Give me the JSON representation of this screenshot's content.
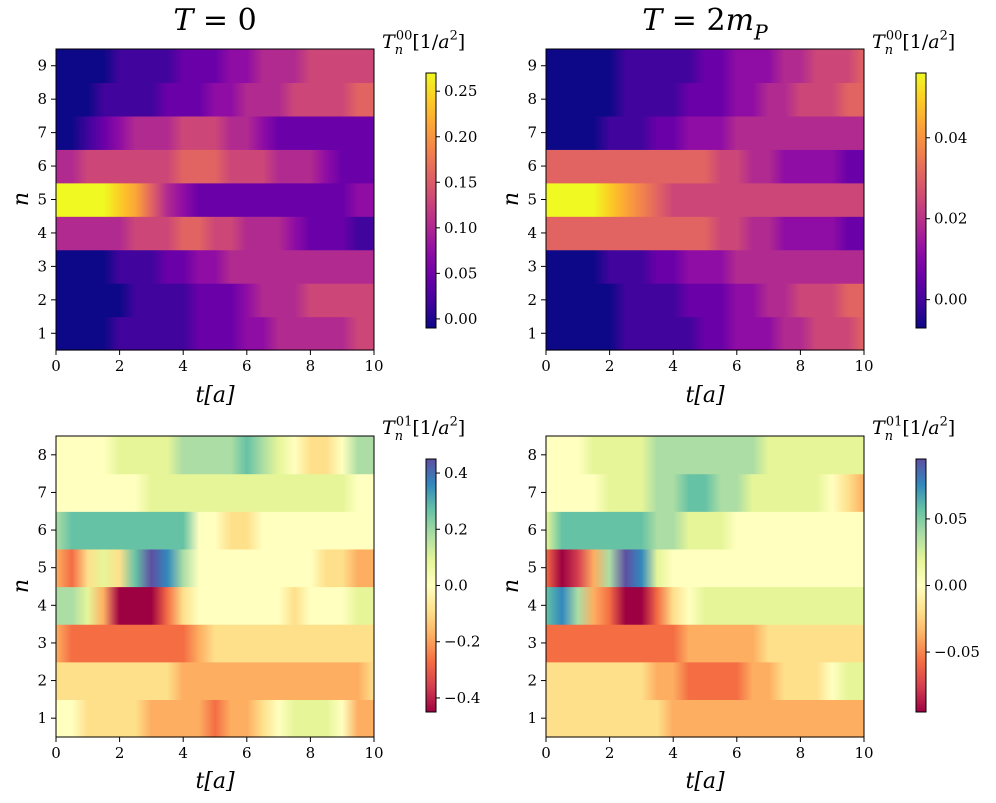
{
  "chart_data": [
    {
      "type": "heatmap",
      "title": "T = 0",
      "quantity": "T_n^{00}[1/a^2]",
      "colormap": "plasma",
      "xlabel": "t[a]",
      "ylabel": "n",
      "xlim": [
        0,
        10
      ],
      "xticks": [
        "0",
        "2",
        "4",
        "6",
        "8",
        "10"
      ],
      "rows": [
        "1",
        "2",
        "3",
        "4",
        "5",
        "6",
        "7",
        "8",
        "9"
      ],
      "t": [
        0,
        0.5,
        1,
        1.5,
        2,
        2.5,
        3,
        3.5,
        4,
        4.5,
        5,
        5.5,
        6,
        6.5,
        7,
        7.5,
        8,
        8.5,
        9,
        9.5,
        10
      ],
      "values": [
        [
          0.0,
          0.0,
          0.0,
          0.0,
          0.005,
          0.01,
          0.015,
          0.02,
          0.03,
          0.04,
          0.05,
          0.06,
          0.07,
          0.08,
          0.09,
          0.1,
          0.1,
          0.11,
          0.11,
          0.12,
          0.12
        ],
        [
          0.0,
          0.0,
          0.0,
          0.0,
          0.0,
          0.005,
          0.01,
          0.02,
          0.03,
          0.04,
          0.05,
          0.06,
          0.07,
          0.09,
          0.1,
          0.11,
          0.12,
          0.13,
          0.14,
          0.14,
          0.14
        ],
        [
          0.0,
          -0.01,
          -0.005,
          0.0,
          0.01,
          0.02,
          0.03,
          0.04,
          0.05,
          0.07,
          0.08,
          0.09,
          0.1,
          0.1,
          0.1,
          0.1,
          0.1,
          0.1,
          0.1,
          0.09,
          0.09
        ],
        [
          0.1,
          0.1,
          0.1,
          0.1,
          0.11,
          0.12,
          0.13,
          0.14,
          0.15,
          0.15,
          0.14,
          0.13,
          0.11,
          0.1,
          0.09,
          0.08,
          0.06,
          0.05,
          0.04,
          0.02,
          0.02
        ],
        [
          0.27,
          0.27,
          0.27,
          0.26,
          0.24,
          0.2,
          0.15,
          0.1,
          0.07,
          0.06,
          0.05,
          0.05,
          0.05,
          0.05,
          0.05,
          0.05,
          0.06,
          0.06,
          0.06,
          0.07,
          0.07
        ],
        [
          0.1,
          0.11,
          0.12,
          0.13,
          0.13,
          0.13,
          0.13,
          0.14,
          0.15,
          0.15,
          0.15,
          0.14,
          0.13,
          0.12,
          0.11,
          0.1,
          0.09,
          0.08,
          0.06,
          0.05,
          0.04
        ],
        [
          -0.01,
          -0.005,
          0.02,
          0.05,
          0.07,
          0.09,
          0.1,
          0.11,
          0.12,
          0.12,
          0.12,
          0.11,
          0.09,
          0.07,
          0.05,
          0.04,
          0.04,
          0.05,
          0.06,
          0.06,
          0.06
        ],
        [
          0.0,
          0.0,
          0.0,
          0.005,
          0.01,
          0.02,
          0.03,
          0.04,
          0.05,
          0.06,
          0.07,
          0.08,
          0.09,
          0.1,
          0.11,
          0.12,
          0.13,
          0.14,
          0.14,
          0.15,
          0.15
        ],
        [
          0.0,
          0.0,
          0.0,
          0.0,
          0.005,
          0.01,
          0.02,
          0.03,
          0.04,
          0.05,
          0.06,
          0.07,
          0.08,
          0.09,
          0.1,
          0.11,
          0.12,
          0.12,
          0.13,
          0.13,
          0.13
        ]
      ],
      "vmin": -0.01,
      "vmax": 0.27,
      "colorbar_ticks": [
        "0.00",
        "0.05",
        "0.10",
        "0.15",
        "0.20",
        "0.25"
      ]
    },
    {
      "type": "heatmap",
      "title": "T = 2m_P",
      "quantity": "T_n^{00}[1/a^2]",
      "colormap": "plasma",
      "xlabel": "t[a]",
      "ylabel": "n",
      "xlim": [
        0,
        10
      ],
      "xticks": [
        "0",
        "2",
        "4",
        "6",
        "8",
        "10"
      ],
      "rows": [
        "1",
        "2",
        "3",
        "4",
        "5",
        "6",
        "7",
        "8",
        "9"
      ],
      "t": [
        0,
        0.5,
        1,
        1.5,
        2,
        2.5,
        3,
        3.5,
        4,
        4.5,
        5,
        5.5,
        6,
        6.5,
        7,
        7.5,
        8,
        8.5,
        9,
        9.5,
        10
      ],
      "values": [
        [
          -0.005,
          -0.005,
          -0.005,
          -0.005,
          -0.004,
          -0.003,
          -0.002,
          -0.001,
          0.0,
          0.002,
          0.004,
          0.006,
          0.009,
          0.012,
          0.015,
          0.018,
          0.021,
          0.024,
          0.026,
          0.027,
          0.028
        ],
        [
          -0.005,
          -0.005,
          -0.005,
          -0.005,
          -0.004,
          -0.003,
          -0.002,
          -0.001,
          0.001,
          0.003,
          0.005,
          0.008,
          0.011,
          0.014,
          0.017,
          0.02,
          0.023,
          0.025,
          0.027,
          0.028,
          0.03
        ],
        [
          -0.005,
          -0.007,
          -0.006,
          -0.004,
          -0.002,
          0.0,
          0.002,
          0.005,
          0.008,
          0.011,
          0.013,
          0.015,
          0.016,
          0.017,
          0.018,
          0.018,
          0.018,
          0.018,
          0.018,
          0.018,
          0.018
        ],
        [
          0.03,
          0.03,
          0.03,
          0.03,
          0.03,
          0.032,
          0.033,
          0.033,
          0.032,
          0.03,
          0.028,
          0.025,
          0.022,
          0.019,
          0.016,
          0.013,
          0.011,
          0.01,
          0.009,
          0.008,
          0.008
        ],
        [
          0.056,
          0.056,
          0.056,
          0.054,
          0.05,
          0.045,
          0.038,
          0.032,
          0.027,
          0.025,
          0.024,
          0.024,
          0.024,
          0.024,
          0.024,
          0.024,
          0.024,
          0.024,
          0.024,
          0.024,
          0.024
        ],
        [
          0.03,
          0.03,
          0.03,
          0.03,
          0.03,
          0.032,
          0.033,
          0.033,
          0.032,
          0.03,
          0.028,
          0.025,
          0.022,
          0.019,
          0.016,
          0.013,
          0.011,
          0.01,
          0.009,
          0.008,
          0.008
        ],
        [
          -0.005,
          -0.007,
          -0.006,
          -0.004,
          -0.002,
          0.0,
          0.002,
          0.005,
          0.008,
          0.011,
          0.013,
          0.015,
          0.016,
          0.017,
          0.018,
          0.018,
          0.018,
          0.018,
          0.018,
          0.018,
          0.018
        ],
        [
          -0.005,
          -0.005,
          -0.005,
          -0.005,
          -0.004,
          -0.003,
          -0.002,
          -0.001,
          0.001,
          0.003,
          0.005,
          0.008,
          0.011,
          0.014,
          0.017,
          0.02,
          0.023,
          0.025,
          0.027,
          0.028,
          0.03
        ],
        [
          -0.005,
          -0.005,
          -0.005,
          -0.005,
          -0.004,
          -0.003,
          -0.002,
          -0.001,
          0.0,
          0.002,
          0.004,
          0.006,
          0.009,
          0.012,
          0.015,
          0.018,
          0.021,
          0.024,
          0.026,
          0.027,
          0.028
        ]
      ],
      "vmin": -0.007,
      "vmax": 0.056,
      "colorbar_ticks": [
        "0.00",
        "0.02",
        "0.04"
      ]
    },
    {
      "type": "heatmap",
      "title": "",
      "quantity": "T_n^{01}[1/a^2]",
      "colormap": "Spectral",
      "xlabel": "t[a]",
      "ylabel": "n",
      "xlim": [
        0,
        10
      ],
      "xticks": [
        "0",
        "2",
        "4",
        "6",
        "8",
        "10"
      ],
      "rows": [
        "1",
        "2",
        "3",
        "4",
        "5",
        "6",
        "7",
        "8"
      ],
      "t": [
        0,
        0.5,
        1,
        1.5,
        2,
        2.5,
        3,
        3.5,
        4,
        4.5,
        5,
        5.5,
        6,
        6.5,
        7,
        7.5,
        8,
        8.5,
        9,
        9.5,
        10
      ],
      "values": [
        [
          -0.02,
          -0.04,
          -0.06,
          -0.08,
          -0.1,
          -0.12,
          -0.14,
          -0.16,
          -0.18,
          -0.2,
          -0.24,
          -0.22,
          -0.18,
          -0.06,
          0.02,
          0.08,
          0.1,
          0.06,
          -0.04,
          -0.16,
          -0.22
        ],
        [
          -0.06,
          -0.06,
          -0.08,
          -0.08,
          -0.1,
          -0.1,
          -0.12,
          -0.12,
          -0.14,
          -0.16,
          -0.16,
          -0.16,
          -0.18,
          -0.18,
          -0.18,
          -0.2,
          -0.2,
          -0.2,
          -0.2,
          -0.22,
          -0.08
        ],
        [
          -0.2,
          -0.28,
          -0.28,
          -0.28,
          -0.28,
          -0.28,
          -0.28,
          -0.26,
          -0.24,
          -0.18,
          -0.1,
          -0.08,
          -0.08,
          -0.06,
          -0.06,
          -0.06,
          -0.06,
          -0.06,
          -0.06,
          -0.06,
          -0.06
        ],
        [
          0.18,
          0.2,
          0.05,
          -0.2,
          -0.42,
          -0.44,
          -0.42,
          -0.3,
          -0.12,
          -0.04,
          0.02,
          0.02,
          0.0,
          -0.02,
          -0.04,
          -0.06,
          -0.04,
          -0.02,
          0.02,
          0.08,
          0.12
        ],
        [
          -0.22,
          -0.28,
          -0.1,
          0.05,
          -0.08,
          0.25,
          0.42,
          0.38,
          0.2,
          -0.02,
          -0.04,
          -0.04,
          -0.04,
          -0.04,
          -0.04,
          -0.04,
          -0.04,
          -0.06,
          -0.1,
          -0.14,
          -0.16
        ],
        [
          0.22,
          0.3,
          0.3,
          0.28,
          0.28,
          0.28,
          0.28,
          0.3,
          0.24,
          0.02,
          -0.04,
          -0.06,
          -0.06,
          -0.04,
          -0.04,
          -0.04,
          -0.02,
          -0.02,
          0.0,
          0.0,
          0.0
        ],
        [
          0.02,
          0.02,
          0.02,
          0.02,
          0.04,
          0.04,
          0.06,
          0.06,
          0.08,
          0.1,
          0.1,
          0.12,
          0.12,
          0.12,
          0.12,
          0.12,
          0.1,
          0.08,
          0.06,
          -0.02,
          -0.02
        ],
        [
          0.0,
          0.02,
          0.04,
          0.04,
          0.06,
          0.08,
          0.1,
          0.12,
          0.14,
          0.16,
          0.18,
          0.2,
          0.24,
          0.22,
          0.1,
          0.0,
          -0.08,
          -0.08,
          0.02,
          0.16,
          0.2
        ]
      ],
      "vmin": -0.45,
      "vmax": 0.45,
      "colorbar_ticks": [
        "−0.4",
        "−0.2",
        "0.0",
        "0.2",
        "0.4"
      ]
    },
    {
      "type": "heatmap",
      "title": "",
      "quantity": "T_n^{01}[1/a^2]",
      "colormap": "Spectral",
      "xlabel": "t[a]",
      "ylabel": "n",
      "xlim": [
        0,
        10
      ],
      "xticks": [
        "0",
        "2",
        "4",
        "6",
        "8",
        "10"
      ],
      "rows": [
        "1",
        "2",
        "3",
        "4",
        "5",
        "6",
        "7",
        "8"
      ],
      "t": [
        0,
        0.5,
        1,
        1.5,
        2,
        2.5,
        3,
        3.5,
        4,
        4.5,
        5,
        5.5,
        6,
        6.5,
        7,
        7.5,
        8,
        8.5,
        9,
        9.5,
        10
      ],
      "values": [
        [
          -0.01,
          -0.01,
          -0.01,
          -0.015,
          -0.015,
          -0.02,
          -0.02,
          -0.025,
          -0.03,
          -0.035,
          -0.04,
          -0.04,
          -0.035,
          -0.03,
          -0.03,
          -0.03,
          -0.03,
          -0.03,
          -0.03,
          -0.03,
          -0.035
        ],
        [
          -0.01,
          -0.01,
          -0.015,
          -0.015,
          -0.02,
          -0.02,
          -0.025,
          -0.03,
          -0.04,
          -0.05,
          -0.06,
          -0.06,
          -0.05,
          -0.04,
          -0.03,
          -0.02,
          -0.01,
          -0.01,
          0.0,
          0.01,
          0.02
        ],
        [
          -0.05,
          -0.06,
          -0.06,
          -0.06,
          -0.06,
          -0.05,
          -0.05,
          -0.05,
          -0.05,
          -0.04,
          -0.04,
          -0.03,
          -0.03,
          -0.03,
          -0.02,
          -0.02,
          -0.02,
          -0.02,
          -0.02,
          -0.02,
          -0.02
        ],
        [
          0.06,
          0.08,
          0.04,
          -0.04,
          -0.06,
          -0.09,
          -0.09,
          -0.06,
          -0.02,
          0.0,
          0.01,
          0.01,
          0.01,
          0.01,
          0.01,
          0.01,
          0.01,
          0.01,
          0.01,
          0.01,
          0.01
        ],
        [
          -0.05,
          -0.09,
          -0.08,
          -0.03,
          0.03,
          0.09,
          0.07,
          0.02,
          0.0,
          0.0,
          0.0,
          0.0,
          0.0,
          0.0,
          0.0,
          0.0,
          0.0,
          0.0,
          0.0,
          0.0,
          0.0
        ],
        [
          0.02,
          0.06,
          0.06,
          0.06,
          0.05,
          0.05,
          0.05,
          0.04,
          0.03,
          0.02,
          0.01,
          0.01,
          0.0,
          0.0,
          0.0,
          0.0,
          0.0,
          0.0,
          0.0,
          0.0,
          0.0
        ],
        [
          0.0,
          0.0,
          0.0,
          0.005,
          0.01,
          0.015,
          0.02,
          0.03,
          0.04,
          0.05,
          0.05,
          0.04,
          0.03,
          0.025,
          0.02,
          0.02,
          0.015,
          0.01,
          0.0,
          -0.01,
          -0.03
        ],
        [
          0.0,
          0.0,
          0.005,
          0.01,
          0.015,
          0.02,
          0.025,
          0.03,
          0.035,
          0.04,
          0.04,
          0.04,
          0.035,
          0.03,
          0.025,
          0.02,
          0.02,
          0.02,
          0.02,
          0.02,
          0.02
        ]
      ],
      "vmin": -0.095,
      "vmax": 0.095,
      "colorbar_ticks": [
        "−0.05",
        "0.00",
        "0.05"
      ]
    }
  ]
}
